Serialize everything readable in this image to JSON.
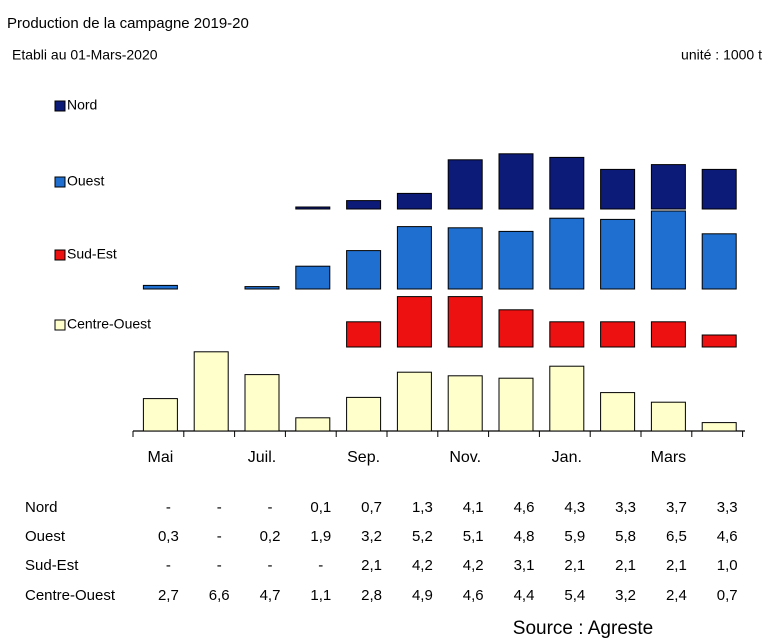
{
  "chart_data": {
    "type": "bar",
    "subtitle": "Production de la campagne 2019-20",
    "date_note": "Etabli au 01-Mars-2020",
    "unit": "unité : 1000 t",
    "source": "Source : Agreste",
    "categories": [
      "Mai",
      null,
      "Juil.",
      null,
      "Sep.",
      null,
      "Nov.",
      null,
      "Jan.",
      null,
      "Mars",
      null
    ],
    "series": [
      {
        "name": "Nord",
        "color": "#0c1a78",
        "values": [
          null,
          null,
          null,
          0.1,
          0.7,
          1.3,
          4.1,
          4.6,
          4.3,
          3.3,
          3.7,
          3.3
        ],
        "value_labels": [
          "-",
          "-",
          "-",
          "0,1",
          "0,7",
          "1,3",
          "4,1",
          "4,6",
          "4,3",
          "3,3",
          "3,7",
          "3,3"
        ]
      },
      {
        "name": "Ouest",
        "color": "#1f6fd0",
        "values": [
          0.3,
          null,
          0.2,
          1.9,
          3.2,
          5.2,
          5.1,
          4.8,
          5.9,
          5.8,
          6.5,
          4.6
        ],
        "value_labels": [
          "0,3",
          "-",
          "0,2",
          "1,9",
          "3,2",
          "5,2",
          "5,1",
          "4,8",
          "5,9",
          "5,8",
          "6,5",
          "4,6"
        ]
      },
      {
        "name": "Sud-Est",
        "color": "#ee1111",
        "values": [
          null,
          null,
          null,
          null,
          2.1,
          4.2,
          4.2,
          3.1,
          2.1,
          2.1,
          2.1,
          1.0
        ],
        "value_labels": [
          "-",
          "-",
          "-",
          "-",
          "2,1",
          "4,2",
          "4,2",
          "3,1",
          "2,1",
          "2,1",
          "2,1",
          "1,0"
        ]
      },
      {
        "name": "Centre-Ouest",
        "color": "#ffffcc",
        "values": [
          2.7,
          6.6,
          4.7,
          1.1,
          2.8,
          4.9,
          4.6,
          4.4,
          5.4,
          3.2,
          2.4,
          0.7
        ],
        "value_labels": [
          "2,7",
          "6,6",
          "4,7",
          "1,1",
          "2,8",
          "4,9",
          "4,6",
          "4,4",
          "5,4",
          "3,2",
          "2,4",
          "0,7"
        ]
      }
    ]
  }
}
